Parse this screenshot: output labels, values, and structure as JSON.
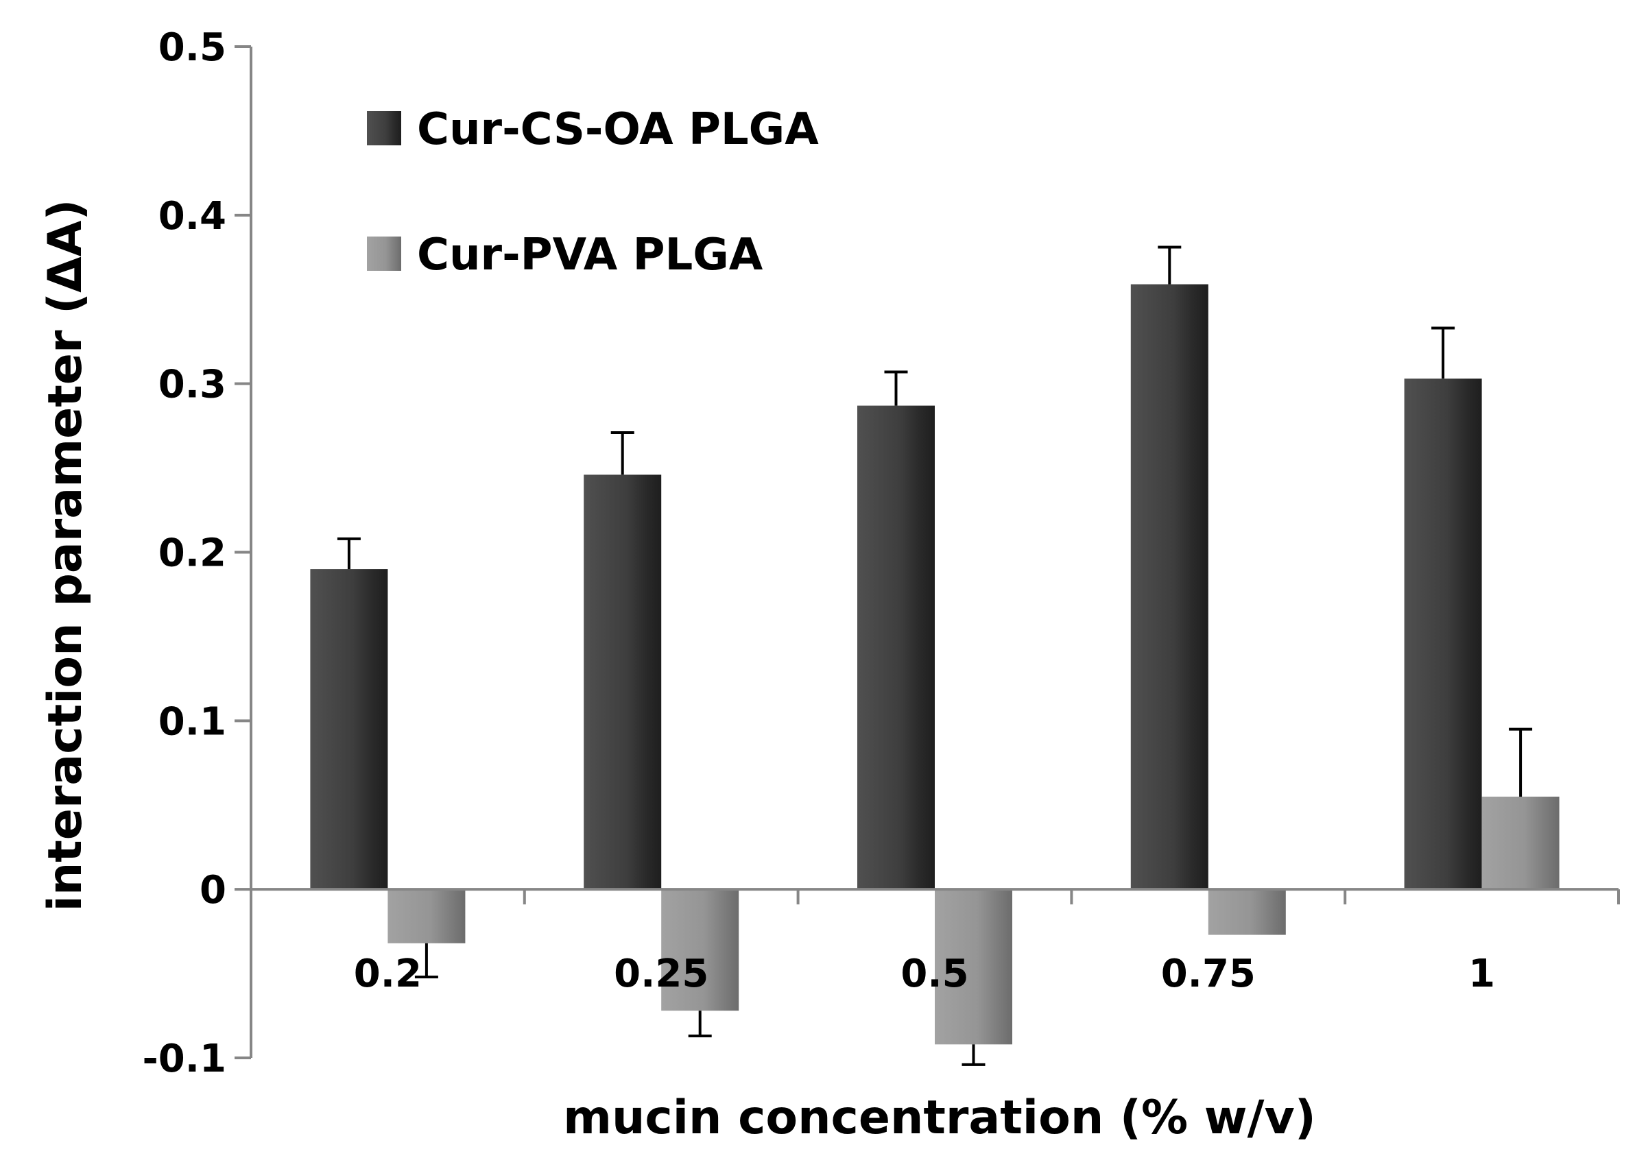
{
  "chart_data": {
    "type": "bar",
    "title": "",
    "xlabel": "mucin concentration (% w/v)",
    "ylabel": "interaction parameter (ΔA)",
    "ylim": [
      -0.1,
      0.5
    ],
    "yticks": [
      -0.1,
      0,
      0.1,
      0.2,
      0.3,
      0.4,
      0.5
    ],
    "ytick_labels": [
      "-0.1",
      "0",
      "0.1",
      "0.2",
      "0.3",
      "0.4",
      "0.5"
    ],
    "categories": [
      "0.2",
      "0.25",
      "0.5",
      "0.75",
      "1"
    ],
    "grid": false,
    "legend_position": "top-left",
    "series": [
      {
        "name": "Cur-CS-OA PLGA",
        "color": "#3a3a3a",
        "values": [
          0.19,
          0.246,
          0.287,
          0.359,
          0.303
        ],
        "errors": [
          0.018,
          0.025,
          0.02,
          0.022,
          0.03
        ]
      },
      {
        "name": "Cur-PVA PLGA",
        "color": "#9a9a9a",
        "values": [
          -0.032,
          -0.072,
          -0.092,
          -0.027,
          0.055
        ],
        "errors": [
          0.02,
          0.015,
          0.012,
          0.0,
          0.04
        ]
      }
    ]
  }
}
